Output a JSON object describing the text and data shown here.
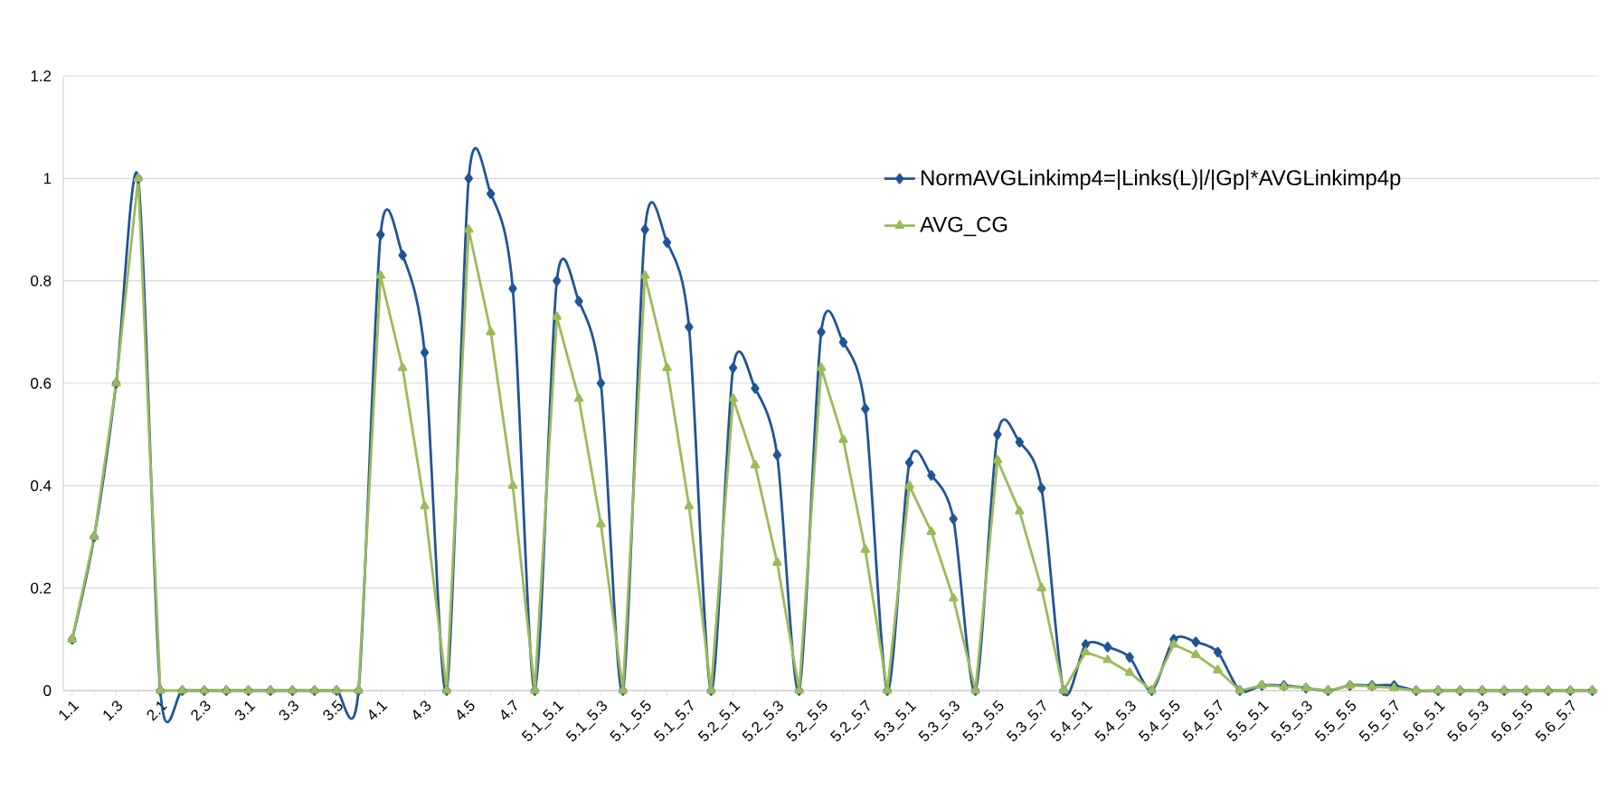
{
  "chart_data": {
    "type": "line",
    "categories": [
      "1.1",
      null,
      "1.3",
      null,
      "2.1",
      null,
      "2.3",
      null,
      "3.1",
      null,
      "3.3",
      null,
      "3.5",
      null,
      "4.1",
      null,
      "4.3",
      null,
      "4.5",
      null,
      "4.7",
      null,
      "5.1_5.1",
      null,
      "5.1_5.3",
      null,
      "5.1_5.5",
      null,
      "5.1_5.7",
      null,
      "5.2_5.1",
      null,
      "5.2_5.3",
      null,
      "5.2_5.5",
      null,
      "5.2_5.7",
      null,
      "5.3_5.1",
      null,
      "5.3_5.3",
      null,
      "5.3_5.5",
      null,
      "5.3_5.7",
      null,
      "5.4_5.1",
      null,
      "5.4_5.3",
      null,
      "5.4_5.5",
      null,
      "5.4_5.7",
      null,
      "5.5_5.1",
      null,
      "5.5_5.3",
      null,
      "5.5_5.5",
      null,
      "5.5_5.7",
      null,
      "5.6_5.1",
      null,
      "5.6_5.3",
      null,
      "5.6_5.5",
      null,
      "5.6_5.7",
      null
    ],
    "series": [
      {
        "name": "NormAVGLinkimp4=|Links(L)|/|Gp|*AVGLinkimp4p",
        "color": "#1f5597",
        "marker": "diamond",
        "values": [
          0.1,
          0.3,
          0.6,
          1.0,
          0,
          0,
          0,
          0,
          0,
          0,
          0,
          0,
          0,
          0,
          0.89,
          0.85,
          0.66,
          0,
          1.0,
          0.97,
          0.785,
          0,
          0.8,
          0.76,
          0.6,
          0,
          0.9,
          0.875,
          0.71,
          0,
          0.63,
          0.59,
          0.46,
          0,
          0.7,
          0.68,
          0.55,
          0,
          0.445,
          0.42,
          0.335,
          0,
          0.5,
          0.485,
          0.395,
          0,
          0.09,
          0.085,
          0.065,
          0,
          0.1,
          0.095,
          0.075,
          0,
          0.01,
          0.01,
          0.005,
          0,
          0.01,
          0.01,
          0.01,
          0,
          0,
          0,
          0,
          0,
          0,
          0,
          0,
          0
        ]
      },
      {
        "name": "AVG_CG",
        "color": "#9bbb59",
        "marker": "triangle",
        "values": [
          0.1,
          0.3,
          0.6,
          1.0,
          0,
          0,
          0,
          0,
          0,
          0,
          0,
          0,
          0,
          0,
          0.81,
          0.63,
          0.36,
          0,
          0.9,
          0.7,
          0.4,
          0,
          0.73,
          0.57,
          0.325,
          0,
          0.81,
          0.63,
          0.36,
          0,
          0.57,
          0.44,
          0.25,
          0,
          0.63,
          0.49,
          0.275,
          0,
          0.4,
          0.31,
          0.18,
          0,
          0.45,
          0.35,
          0.2,
          0,
          0.075,
          0.06,
          0.035,
          0,
          0.09,
          0.07,
          0.04,
          0,
          0.01,
          0.008,
          0.005,
          0,
          0.01,
          0.008,
          0.005,
          0,
          0,
          0,
          0,
          0,
          0,
          0,
          0,
          0
        ]
      }
    ],
    "ylim": [
      0,
      1.2
    ],
    "yticks": [
      0,
      0.2,
      0.4,
      0.6,
      0.8,
      1,
      1.2
    ],
    "grid": "y",
    "legend": "right"
  }
}
